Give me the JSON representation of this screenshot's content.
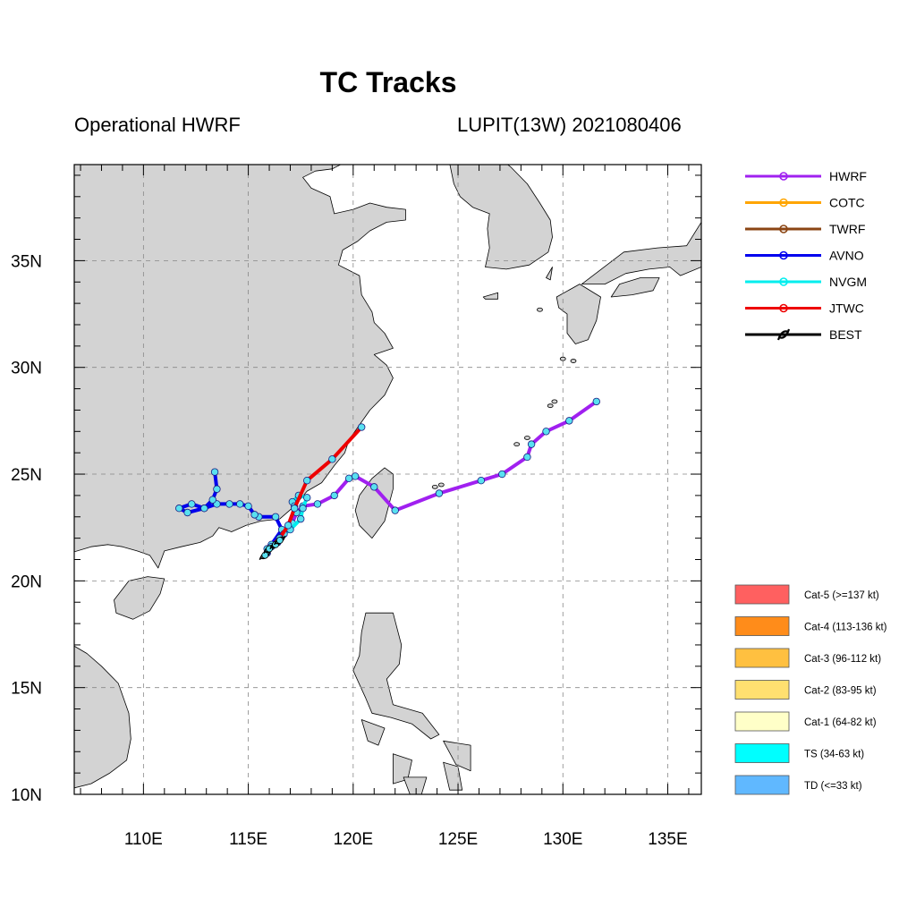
{
  "title": "TC Tracks",
  "subtitle_left": "Operational HWRF",
  "subtitle_right": "LUPIT(13W) 2021080406",
  "chart_data": {
    "type": "map-tracks",
    "lon_range": [
      106.7,
      136.6
    ],
    "lat_range": [
      10,
      39.5
    ],
    "lon_ticks": [
      {
        "value": 110,
        "label": "110E"
      },
      {
        "value": 115,
        "label": "115E"
      },
      {
        "value": 120,
        "label": "120E"
      },
      {
        "value": 125,
        "label": "125E"
      },
      {
        "value": 130,
        "label": "130E"
      },
      {
        "value": 135,
        "label": "135E"
      }
    ],
    "lat_ticks": [
      {
        "value": 10,
        "label": "10N"
      },
      {
        "value": 15,
        "label": "15N"
      },
      {
        "value": 20,
        "label": "20N"
      },
      {
        "value": 25,
        "label": "25N"
      },
      {
        "value": 30,
        "label": "30N"
      },
      {
        "value": 35,
        "label": "35N"
      }
    ],
    "grid": true,
    "colors": {
      "land": "#d3d3d3",
      "ocean": "#ffffff",
      "coast": "#000000",
      "point_fill": "#59e1f0"
    },
    "tracks": [
      {
        "name": "HWRF",
        "color": "#a020f0",
        "points": [
          [
            115.9,
            21.5
          ],
          [
            116.3,
            21.8
          ],
          [
            116.7,
            22.2
          ],
          [
            117.1,
            22.7
          ],
          [
            117.3,
            23.2
          ],
          [
            117.6,
            23.5
          ],
          [
            118.3,
            23.6
          ],
          [
            119.1,
            24.0
          ],
          [
            119.8,
            24.8
          ],
          [
            120.1,
            24.9
          ],
          [
            121.0,
            24.4
          ],
          [
            122.0,
            23.3
          ],
          [
            124.1,
            24.1
          ],
          [
            126.1,
            24.7
          ],
          [
            127.1,
            25.0
          ],
          [
            128.3,
            25.8
          ],
          [
            128.5,
            26.4
          ],
          [
            129.2,
            27.0
          ],
          [
            130.3,
            27.5
          ],
          [
            131.6,
            28.4
          ]
        ]
      },
      {
        "name": "COTC",
        "color": "#ffa500",
        "points": []
      },
      {
        "name": "TWRF",
        "color": "#8b4513",
        "points": []
      },
      {
        "name": "AVNO",
        "color": "#0000ee",
        "points": [
          [
            116.1,
            21.7
          ],
          [
            116.6,
            22.4
          ],
          [
            116.3,
            23.0
          ],
          [
            115.5,
            23.0
          ],
          [
            115.3,
            23.1
          ],
          [
            115.0,
            23.5
          ],
          [
            114.6,
            23.6
          ],
          [
            114.1,
            23.6
          ],
          [
            113.5,
            23.6
          ],
          [
            112.9,
            23.4
          ],
          [
            112.3,
            23.6
          ],
          [
            111.7,
            23.4
          ],
          [
            112.1,
            23.2
          ],
          [
            112.9,
            23.4
          ],
          [
            113.3,
            23.8
          ],
          [
            113.5,
            24.3
          ],
          [
            113.4,
            25.1
          ]
        ]
      },
      {
        "name": "NVGM",
        "color": "#00eeee",
        "points": [
          [
            115.9,
            21.3
          ],
          [
            116.4,
            21.8
          ],
          [
            116.7,
            22.2
          ],
          [
            117.0,
            22.4
          ],
          [
            117.5,
            22.9
          ],
          [
            117.6,
            23.4
          ],
          [
            117.8,
            23.9
          ],
          [
            117.4,
            24.0
          ],
          [
            117.1,
            23.7
          ],
          [
            117.2,
            23.5
          ]
        ]
      },
      {
        "name": "JTWC",
        "color": "#ee0000",
        "points": [
          [
            116.1,
            21.6
          ],
          [
            116.5,
            22.0
          ],
          [
            116.9,
            22.6
          ],
          [
            117.2,
            23.4
          ],
          [
            117.8,
            24.7
          ],
          [
            119.0,
            25.7
          ],
          [
            120.4,
            27.2
          ]
        ]
      },
      {
        "name": "BEST",
        "color": "#000000",
        "points": [
          [
            115.8,
            21.2
          ],
          [
            116.0,
            21.5
          ],
          [
            116.3,
            21.7
          ],
          [
            116.5,
            21.9
          ]
        ]
      }
    ],
    "legend": {
      "position": "right",
      "tracks": [
        "HWRF",
        "COTC",
        "TWRF",
        "AVNO",
        "NVGM",
        "JTWC",
        "BEST"
      ],
      "categories": [
        {
          "label": "Cat-5 (>=137 kt)",
          "color": "#ff6060"
        },
        {
          "label": "Cat-4 (113-136 kt)",
          "color": "#ff8c1a"
        },
        {
          "label": "Cat-3 (96-112 kt)",
          "color": "#ffc040"
        },
        {
          "label": "Cat-2 (83-95 kt)",
          "color": "#ffe070"
        },
        {
          "label": "Cat-1 (64-82 kt)",
          "color": "#ffffc8"
        },
        {
          "label": "TS (34-63 kt)",
          "color": "#00ffff"
        },
        {
          "label": "TD (<=33 kt)",
          "color": "#60b8ff"
        }
      ]
    }
  }
}
